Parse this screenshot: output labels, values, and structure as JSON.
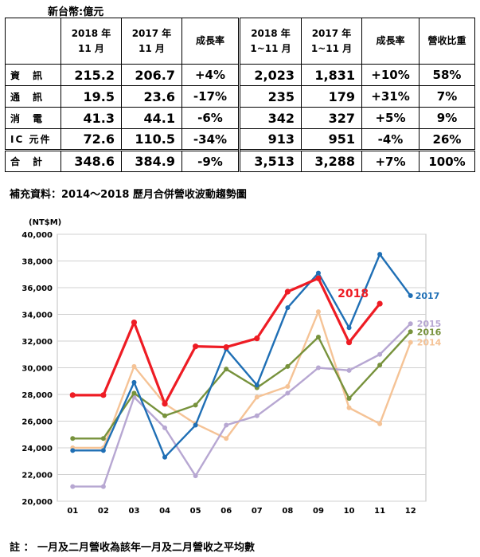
{
  "unit_note": "新台幣:億元",
  "table": {
    "headers": [
      {
        "lines": [
          ""
        ]
      },
      {
        "lines": [
          "2018 年",
          "11 月"
        ]
      },
      {
        "lines": [
          "2017 年",
          "11 月"
        ]
      },
      {
        "lines": [
          "成長率"
        ]
      },
      {
        "lines": [
          "2018 年",
          "1~11 月"
        ]
      },
      {
        "lines": [
          "2017 年",
          "1~11 月"
        ]
      },
      {
        "lines": [
          "成長率"
        ]
      },
      {
        "lines": [
          "營收比重"
        ]
      }
    ],
    "rows": [
      {
        "label": "資　訊",
        "cells": [
          "215.2",
          "206.7",
          "+4%",
          "2,023",
          "1,831",
          "+10%",
          "58%"
        ]
      },
      {
        "label": "通　訊",
        "cells": [
          "19.5",
          "23.6",
          "-17%",
          "235",
          "179",
          "+31%",
          "7%"
        ]
      },
      {
        "label": "消　電",
        "cells": [
          "41.3",
          "44.1",
          "-6%",
          "342",
          "327",
          "+5%",
          "9%"
        ]
      },
      {
        "label": "IC 元件",
        "cells": [
          "72.6",
          "110.5",
          "-34%",
          "913",
          "951",
          "-4%",
          "26%"
        ]
      },
      {
        "label": "合　計",
        "cells": [
          "348.6",
          "384.9",
          "-9%",
          "3,513",
          "3,288",
          "+7%",
          "100%"
        ],
        "total": true
      }
    ]
  },
  "chart_title": "補充資料：2014～2018 歷月合併營收波動趨勢圖",
  "footnote": "註 ： 一月及二月營收為該年一月及二月營收之平均數",
  "chart_data": {
    "type": "line",
    "title": "補充資料：2014～2018 歷月合併營收波動趨勢圖",
    "ylabel": "(NT$M)",
    "xlabel": "",
    "x": [
      "01",
      "02",
      "03",
      "04",
      "05",
      "06",
      "07",
      "08",
      "09",
      "10",
      "11",
      "12"
    ],
    "ylim": [
      20000,
      40000
    ],
    "yticks": [
      20000,
      22000,
      24000,
      26000,
      28000,
      30000,
      32000,
      34000,
      36000,
      38000,
      40000
    ],
    "ytick_labels": [
      "20,000",
      "22,000",
      "24,000",
      "26,000",
      "28,000",
      "30,000",
      "32,000",
      "34,000",
      "36,000",
      "38,000",
      "40,000"
    ],
    "grid": true,
    "series": [
      {
        "name": "2014",
        "color": "#f5c396",
        "values": [
          24000,
          24000,
          30100,
          27300,
          25800,
          24700,
          27800,
          28600,
          34200,
          27000,
          25800,
          31900
        ]
      },
      {
        "name": "2015",
        "color": "#b7a7d2",
        "values": [
          21100,
          21100,
          27800,
          25500,
          21900,
          25700,
          26400,
          28100,
          30000,
          29800,
          31000,
          33300
        ]
      },
      {
        "name": "2016",
        "color": "#77923c",
        "values": [
          24700,
          24700,
          28100,
          26400,
          27200,
          29900,
          28500,
          30100,
          32300,
          27700,
          30200,
          32700
        ]
      },
      {
        "name": "2017",
        "color": "#1f6fb5",
        "values": [
          23800,
          23800,
          28900,
          23300,
          25700,
          31400,
          28700,
          34500,
          37100,
          33000,
          38500,
          35400
        ]
      },
      {
        "name": "2018",
        "color": "#ee1c24",
        "values": [
          27950,
          27950,
          33400,
          27300,
          31600,
          31550,
          32200,
          35700,
          36700,
          31900,
          34800,
          null
        ]
      }
    ]
  }
}
